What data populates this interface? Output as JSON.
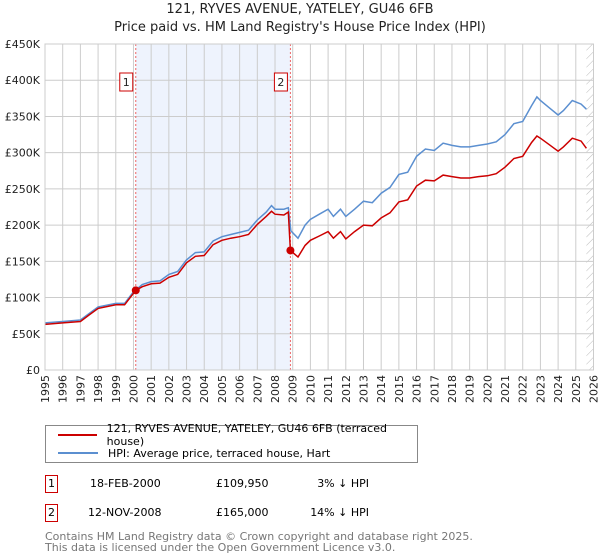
{
  "title_line1": "121, RYVES AVENUE, YATELEY, GU46 6FB",
  "title_line2": "Price paid vs. HM Land Registry's House Price Index (HPI)",
  "legend": [
    {
      "label": "121, RYVES AVENUE, YATELEY, GU46 6FB (terraced house)",
      "color": "#cc0000"
    },
    {
      "label": "HPI: Average price, terraced house, Hart",
      "color": "#5b8fd0"
    }
  ],
  "transactions": [
    {
      "num": "1",
      "date": "18-FEB-2000",
      "price": "£109,950",
      "hpi": "3% ↓ HPI"
    },
    {
      "num": "2",
      "date": "12-NOV-2008",
      "price": "£165,000",
      "hpi": "14% ↓ HPI"
    }
  ],
  "footer_line1": "Contains HM Land Registry data © Crown copyright and database right 2025.",
  "footer_line2": "This data is licensed under the Open Government Licence v3.0.",
  "chart_data": {
    "type": "line",
    "title": "121, RYVES AVENUE, YATELEY, GU46 6FB — Price paid vs. HM Land Registry's House Price Index (HPI)",
    "xlim": [
      1995,
      2026
    ],
    "ylim": [
      0,
      450000
    ],
    "x_ticks": [
      "1995",
      "1996",
      "1997",
      "1998",
      "1999",
      "2000",
      "2001",
      "2002",
      "2003",
      "2004",
      "2005",
      "2006",
      "2007",
      "2008",
      "2009",
      "2010",
      "2011",
      "2012",
      "2013",
      "2014",
      "2015",
      "2016",
      "2017",
      "2018",
      "2019",
      "2020",
      "2021",
      "2022",
      "2023",
      "2024",
      "2025",
      "2026"
    ],
    "y_ticks": [
      {
        "v": 0,
        "label": "£0"
      },
      {
        "v": 50000,
        "label": "£50K"
      },
      {
        "v": 100000,
        "label": "£100K"
      },
      {
        "v": 150000,
        "label": "£150K"
      },
      {
        "v": 200000,
        "label": "£200K"
      },
      {
        "v": 250000,
        "label": "£250K"
      },
      {
        "v": 300000,
        "label": "£300K"
      },
      {
        "v": 350000,
        "label": "£350K"
      },
      {
        "v": 400000,
        "label": "£400K"
      },
      {
        "v": 450000,
        "label": "£450K"
      }
    ],
    "grid": true,
    "shaded_period": [
      2000.13,
      2008.87
    ],
    "forecast_hatch_from": 2025.6,
    "markers": [
      {
        "label": "1",
        "x": 2000.13,
        "y": 109950
      },
      {
        "label": "2",
        "x": 2008.87,
        "y": 165000
      }
    ],
    "series": [
      {
        "name": "HPI: Average price, terraced house, Hart",
        "color": "#5b8fd0",
        "x": [
          1995,
          1996,
          1997,
          1997.5,
          1998,
          1999,
          1999.5,
          2000,
          2000.5,
          2001,
          2001.5,
          2002,
          2002.5,
          2003,
          2003.5,
          2004,
          2004.5,
          2005,
          2005.5,
          2006,
          2006.5,
          2007,
          2007.5,
          2007.8,
          2008,
          2008.5,
          2008.75,
          2008.9,
          2009.3,
          2009.7,
          2010,
          2010.5,
          2011,
          2011.3,
          2011.7,
          2012,
          2012.5,
          2013,
          2013.5,
          2014,
          2014.5,
          2015,
          2015.5,
          2016,
          2016.5,
          2017,
          2017.5,
          2018,
          2018.5,
          2019,
          2019.5,
          2020,
          2020.5,
          2021,
          2021.5,
          2022,
          2022.5,
          2022.8,
          2023,
          2023.5,
          2024,
          2024.3,
          2024.8,
          2025.3,
          2025.6
        ],
        "y": [
          65000,
          67000,
          69000,
          78000,
          87000,
          92000,
          92000,
          108000,
          118000,
          122000,
          123000,
          132000,
          136000,
          152000,
          162000,
          163000,
          178000,
          184000,
          187000,
          190000,
          193000,
          207000,
          218000,
          227000,
          222000,
          222000,
          224000,
          192000,
          182000,
          200000,
          208000,
          215000,
          222000,
          212000,
          222000,
          212000,
          222000,
          233000,
          231000,
          244000,
          252000,
          270000,
          273000,
          295000,
          305000,
          303000,
          313000,
          310000,
          308000,
          308000,
          310000,
          312000,
          315000,
          325000,
          340000,
          343000,
          365000,
          377000,
          372000,
          362000,
          352000,
          358000,
          372000,
          367000,
          360000
        ]
      },
      {
        "name": "121, RYVES AVENUE, YATELEY, GU46 6FB (terraced house)",
        "color": "#cc0000",
        "x": [
          1995,
          1996,
          1997,
          1997.5,
          1998,
          1999,
          1999.5,
          2000.13,
          2000.5,
          2001,
          2001.5,
          2002,
          2002.5,
          2003,
          2003.5,
          2004,
          2004.5,
          2005,
          2005.5,
          2006,
          2006.5,
          2007,
          2007.5,
          2007.8,
          2008,
          2008.5,
          2008.75,
          2008.87,
          2009.3,
          2009.7,
          2010,
          2010.5,
          2011,
          2011.3,
          2011.7,
          2012,
          2012.5,
          2013,
          2013.5,
          2014,
          2014.5,
          2015,
          2015.5,
          2016,
          2016.5,
          2017,
          2017.5,
          2018,
          2018.5,
          2019,
          2019.5,
          2020,
          2020.5,
          2021,
          2021.5,
          2022,
          2022.5,
          2022.8,
          2023,
          2023.5,
          2024,
          2024.3,
          2024.8,
          2025.3,
          2025.6
        ],
        "y": [
          63000,
          65000,
          67000,
          76000,
          85000,
          90000,
          90000,
          109950,
          115000,
          119000,
          120000,
          128000,
          132000,
          148000,
          157000,
          158000,
          173000,
          179000,
          182000,
          184000,
          187000,
          201000,
          212000,
          219000,
          215000,
          214000,
          218000,
          165000,
          156000,
          172000,
          179000,
          185000,
          191000,
          182000,
          191000,
          181000,
          191000,
          200000,
          199000,
          210000,
          217000,
          232000,
          235000,
          254000,
          262000,
          261000,
          269000,
          267000,
          265000,
          265000,
          267000,
          268000,
          271000,
          280000,
          292000,
          295000,
          314000,
          323000,
          320000,
          311000,
          302000,
          308000,
          320000,
          316000,
          306000
        ]
      }
    ]
  }
}
